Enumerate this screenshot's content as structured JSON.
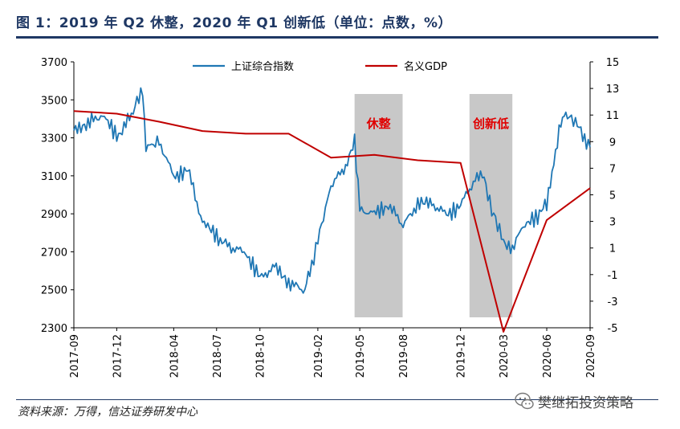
{
  "header": {
    "title": "图 1：2019 年 Q2 休整，2020 年 Q1 创新低（单位：点数，%）"
  },
  "footer": {
    "source": "资料来源：万得，信达证券研发中心",
    "watermark": "樊继拓投资策略",
    "watermark_icon": "wechat-icon"
  },
  "colors": {
    "sse": "#1f77b4",
    "gdp": "#c00000",
    "shade": "#c8c8c8",
    "annotation": "#e00000",
    "brand": "#1f3864"
  },
  "chart_data": {
    "type": "line",
    "legend_position": "top-center",
    "grid": false,
    "x_ticks": [
      "2017-09",
      "2017-12",
      "2018-04",
      "2018-07",
      "2018-10",
      "2019-02",
      "2019-05",
      "2019-08",
      "2019-12",
      "2020-03",
      "2020-06",
      "2020-09"
    ],
    "xlim": [
      "2017-09",
      "2020-09"
    ],
    "left_axis": {
      "ylim": [
        2300,
        3700
      ],
      "ticks": [
        2300,
        2500,
        2700,
        2900,
        3100,
        3300,
        3500,
        3700
      ]
    },
    "right_axis": {
      "ylim": [
        -5,
        15
      ],
      "ticks": [
        -5,
        -3,
        -1,
        1,
        3,
        5,
        7,
        9,
        11,
        13,
        15
      ]
    },
    "series": [
      {
        "name": "上证综合指数",
        "axis": "left",
        "color": "#1f77b4",
        "x": [
          "2017-09",
          "2017-10",
          "2017-11",
          "2017-12",
          "2018-01",
          "2018-01-25",
          "2018-02",
          "2018-03",
          "2018-04",
          "2018-05",
          "2018-06",
          "2018-07",
          "2018-08",
          "2018-09",
          "2018-10",
          "2018-11",
          "2018-12",
          "2019-01",
          "2019-01-15",
          "2019-02",
          "2019-03",
          "2019-04",
          "2019-04-20",
          "2019-05",
          "2019-06",
          "2019-07",
          "2019-08",
          "2019-09",
          "2019-10",
          "2019-11",
          "2019-12",
          "2020-01",
          "2020-01-20",
          "2020-02",
          "2020-03",
          "2020-03-20",
          "2020-04",
          "2020-05",
          "2020-06",
          "2020-07",
          "2020-07-15",
          "2020-08",
          "2020-09"
        ],
        "values": [
          3350,
          3380,
          3420,
          3300,
          3420,
          3560,
          3250,
          3280,
          3100,
          3140,
          2850,
          2780,
          2720,
          2700,
          2560,
          2620,
          2540,
          2500,
          2580,
          2760,
          3050,
          3150,
          3270,
          2920,
          2900,
          2950,
          2840,
          2950,
          2950,
          2900,
          2950,
          3080,
          3100,
          2950,
          2760,
          2700,
          2800,
          2860,
          2950,
          3400,
          3420,
          3380,
          3250
        ]
      },
      {
        "name": "名义GDP",
        "axis": "right",
        "color": "#c00000",
        "x": [
          "2017-09",
          "2017-12",
          "2018-03",
          "2018-06",
          "2018-09",
          "2018-12",
          "2019-03",
          "2019-06",
          "2019-09",
          "2019-12",
          "2020-03",
          "2020-06",
          "2020-09"
        ],
        "values": [
          11.3,
          11.1,
          10.5,
          9.8,
          9.6,
          9.6,
          7.8,
          8.0,
          7.6,
          7.4,
          -5.3,
          3.1,
          5.5
        ]
      }
    ],
    "shaded_periods": [
      {
        "start": "2019-04-20",
        "end": "2019-07-31",
        "label": "休整"
      },
      {
        "start": "2019-12-20",
        "end": "2020-03-20",
        "label": "创新低"
      }
    ]
  }
}
